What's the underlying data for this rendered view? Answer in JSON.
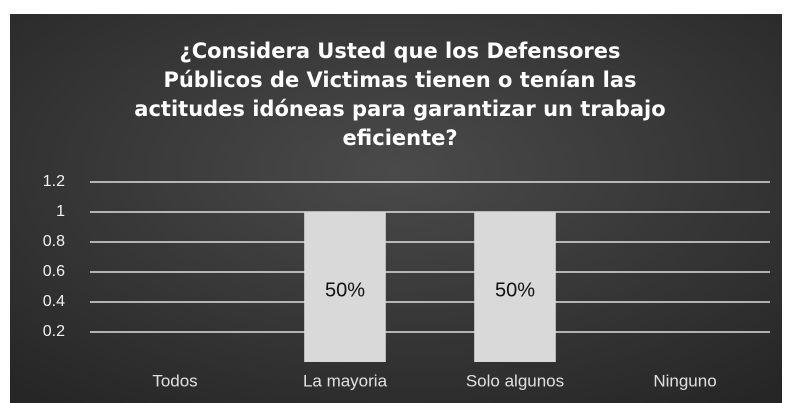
{
  "chart_data": {
    "type": "bar",
    "title_lines": [
      "¿Considera Usted que los Defensores",
      "Públicos de Victimas tienen o tenían las",
      "actitudes idóneas para garantizar un trabajo",
      "eficiente?"
    ],
    "categories": [
      "Todos",
      "La mayoria",
      "Solo algunos",
      "Ninguno"
    ],
    "values": [
      0,
      1,
      1,
      0
    ],
    "value_labels": [
      null,
      "50%",
      "50%",
      null
    ],
    "color": "#d9d9d9",
    "ylim": [
      0,
      1.2
    ],
    "yticks": [
      0.2,
      0.4,
      0.6,
      0.8,
      1,
      1.2
    ],
    "grid": true
  }
}
